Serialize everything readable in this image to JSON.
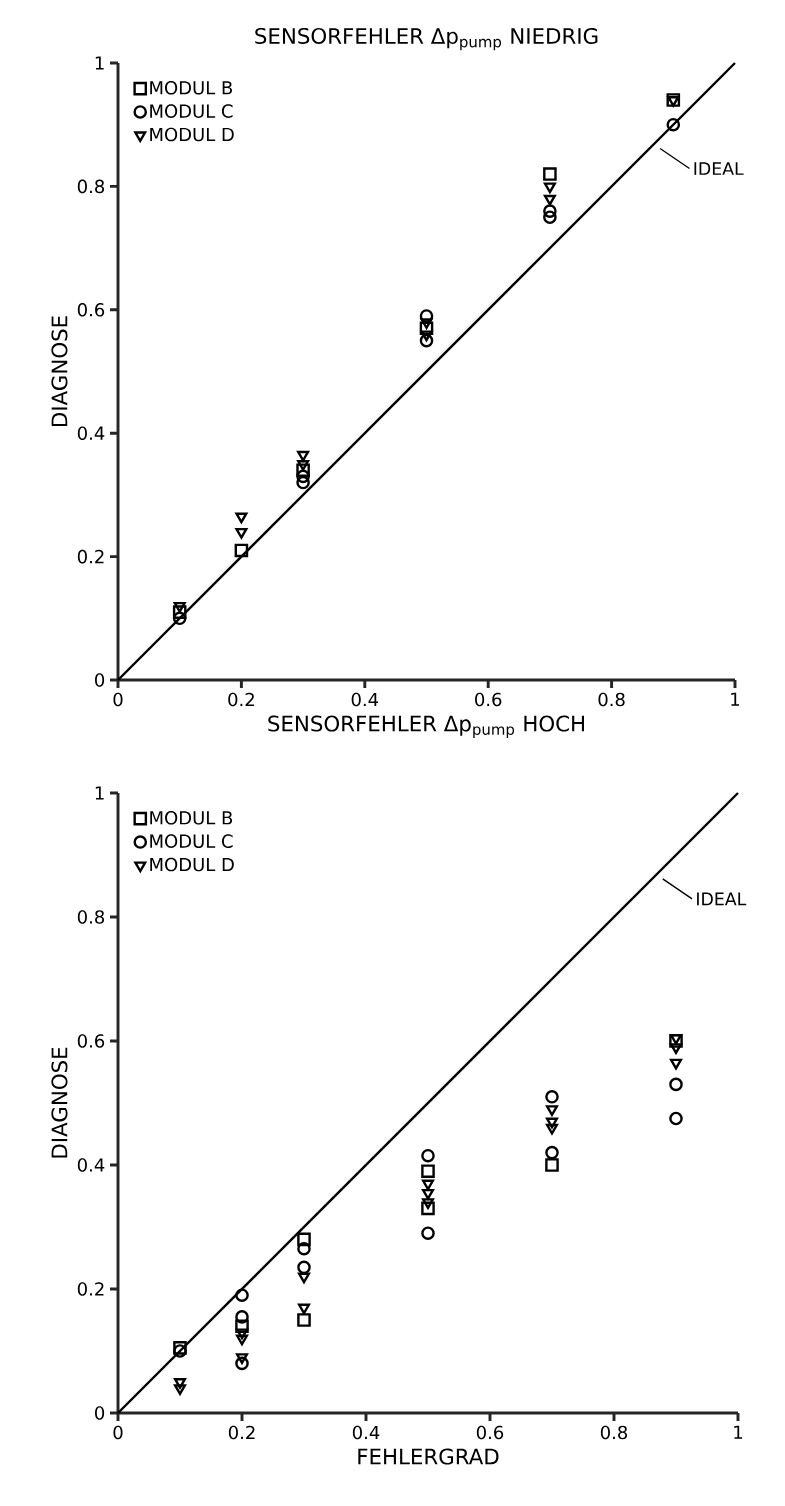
{
  "chart_data": [
    {
      "type": "scatter",
      "title": "SENSORFEHLER Δp$_{pump}$ NIEDRIG",
      "xlabel": "SENSORFEHLER Δp$_{pump}$ HOCH",
      "ylabel": "DIAGNOSE",
      "xlim": [
        0,
        1
      ],
      "ylim": [
        0,
        1
      ],
      "xticks": [
        0,
        0.2,
        0.4,
        0.6,
        0.8,
        1
      ],
      "yticks": [
        0,
        0.2,
        0.4,
        0.6,
        0.8,
        1
      ],
      "grid": false,
      "legend": "top left",
      "series": [
        {
          "name": "MODUL B",
          "color": "#000000",
          "marker": "square",
          "x": [
            0.1,
            0.2,
            0.3,
            0.5,
            0.7,
            0.9
          ],
          "values": [
            0.11,
            0.21,
            0.34,
            0.57,
            0.82,
            0.94
          ]
        },
        {
          "name": "MODUL C",
          "color": "#000000",
          "marker": "circle",
          "x": [
            0.1,
            0.3,
            0.3,
            0.5,
            0.5,
            0.7,
            0.7,
            0.9
          ],
          "values": [
            0.1,
            0.32,
            0.33,
            0.59,
            0.55,
            0.76,
            0.75,
            0.9
          ]
        },
        {
          "name": "MODUL D",
          "color": "#000000",
          "marker": "triangle",
          "x": [
            0.1,
            0.2,
            0.2,
            0.3,
            0.3,
            0.5,
            0.5,
            0.7,
            0.7,
            0.9
          ],
          "values": [
            0.12,
            0.265,
            0.24,
            0.365,
            0.35,
            0.58,
            0.56,
            0.8,
            0.78,
            0.94
          ]
        },
        {
          "name": "IDEAL",
          "type": "line",
          "color": "#000000",
          "marker": "none",
          "x": [
            0,
            1
          ],
          "values": [
            0,
            1
          ]
        }
      ]
    },
    {
      "type": "scatter",
      "xlabel": "FEHLERGRAD",
      "ylabel": "DIAGNOSE",
      "xlim": [
        0,
        1
      ],
      "ylim": [
        0,
        1
      ],
      "xticks": [
        0,
        0.2,
        0.4,
        0.6,
        0.8,
        1
      ],
      "yticks": [
        0,
        0.2,
        0.4,
        0.6,
        0.8,
        1
      ],
      "grid": false,
      "legend": "top left",
      "series": [
        {
          "name": "MODUL B",
          "color": "#000000",
          "marker": "square",
          "x": [
            0.1,
            0.2,
            0.3,
            0.3,
            0.5,
            0.5,
            0.7,
            0.9
          ],
          "values": [
            0.105,
            0.14,
            0.28,
            0.15,
            0.39,
            0.33,
            0.4,
            0.6
          ]
        },
        {
          "name": "MODUL C",
          "color": "#000000",
          "marker": "circle",
          "x": [
            0.1,
            0.2,
            0.2,
            0.2,
            0.3,
            0.3,
            0.5,
            0.5,
            0.7,
            0.7,
            0.9,
            0.9
          ],
          "values": [
            0.1,
            0.19,
            0.155,
            0.08,
            0.265,
            0.235,
            0.415,
            0.29,
            0.51,
            0.42,
            0.53,
            0.475
          ]
        },
        {
          "name": "MODUL D",
          "color": "#000000",
          "marker": "triangle",
          "x": [
            0.1,
            0.1,
            0.2,
            0.2,
            0.2,
            0.3,
            0.3,
            0.5,
            0.5,
            0.5,
            0.7,
            0.7,
            0.7,
            0.9,
            0.9,
            0.9
          ],
          "values": [
            0.05,
            0.04,
            0.13,
            0.12,
            0.09,
            0.22,
            0.17,
            0.37,
            0.355,
            0.34,
            0.49,
            0.47,
            0.46,
            0.605,
            0.59,
            0.565
          ]
        },
        {
          "name": "IDEAL",
          "type": "line",
          "color": "#000000",
          "marker": "none",
          "x": [
            0,
            1
          ],
          "values": [
            0,
            1
          ]
        }
      ]
    }
  ]
}
